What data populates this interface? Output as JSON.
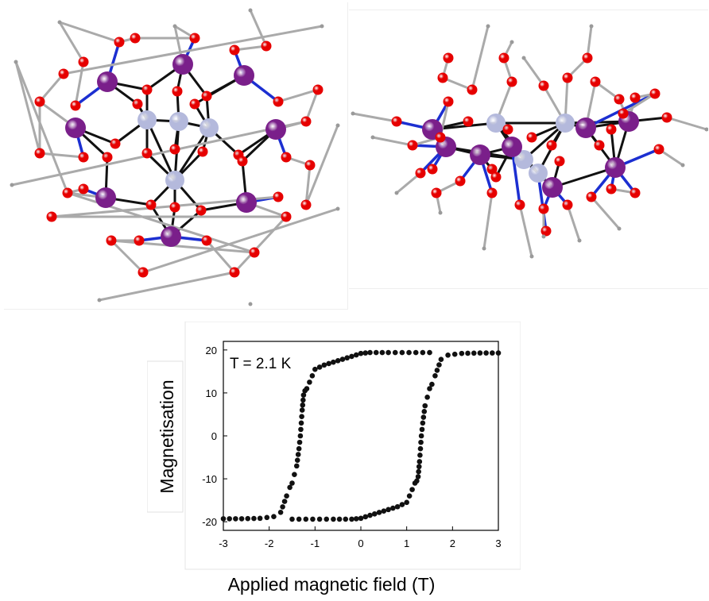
{
  "colors": {
    "metal_center": "#b4b9dc",
    "metal_outer": "#7a1f8a",
    "oxygen": "#e60000",
    "bond_core": "#111111",
    "bond_blue": "#1c2fd1",
    "bond_ligand": "#aaaaaa",
    "data_points": "#111111"
  },
  "chart_data": {
    "type": "scatter",
    "annotation": "T = 2.1 K",
    "xlabel": "Applied magnetic field (T)",
    "ylabel": "Magnetisation",
    "xlim": [
      -3,
      3
    ],
    "ylim": [
      -22,
      22
    ],
    "xticks": [
      "-3",
      "-2",
      "-1",
      "0",
      "1",
      "2",
      "3"
    ],
    "yticks": [
      "20",
      "10",
      "0",
      "-10",
      "-20"
    ],
    "grid": false,
    "series": [
      {
        "x": [
          -3.0,
          -2.6,
          -2.2,
          -1.9,
          -1.75,
          -1.62,
          -1.55,
          -1.5,
          -1.45,
          -1.4,
          -1.35,
          -1.32,
          -1.3,
          -1.28,
          -1.25,
          -1.22,
          -1.18,
          -1.12,
          -1.0,
          -0.8,
          -0.5,
          -0.2,
          0.0,
          0.1,
          0.2,
          0.6,
          0.9,
          1.2,
          1.5
        ],
        "y": [
          -19.3,
          -19.3,
          -19.2,
          -18.8,
          -17.8,
          -14,
          -12,
          -11,
          -9,
          -7,
          -3,
          0,
          3,
          6,
          9.5,
          10.5,
          11,
          12.5,
          15.5,
          16.5,
          17.5,
          18.5,
          19.2,
          19.3,
          19.4,
          19.4,
          19.4,
          19.4,
          19.4
        ]
      },
      {
        "x": [
          3.0,
          2.6,
          2.2,
          1.9,
          1.75,
          1.62,
          1.55,
          1.5,
          1.45,
          1.4,
          1.35,
          1.32,
          1.3,
          1.28,
          1.25,
          1.22,
          1.18,
          1.12,
          1.0,
          0.8,
          0.5,
          0.2,
          0.0,
          -0.1,
          -0.2,
          -0.6,
          -0.9,
          -1.2,
          -1.5
        ],
        "y": [
          19.3,
          19.3,
          19.2,
          18.8,
          17.8,
          14,
          12,
          11,
          9,
          7,
          3,
          0,
          -3,
          -6,
          -9.5,
          -10.5,
          -11,
          -12.5,
          -15.5,
          -16.5,
          -17.5,
          -18.5,
          -19.2,
          -19.3,
          -19.4,
          -19.4,
          -19.4,
          -19.4,
          -19.4
        ]
      }
    ]
  }
}
